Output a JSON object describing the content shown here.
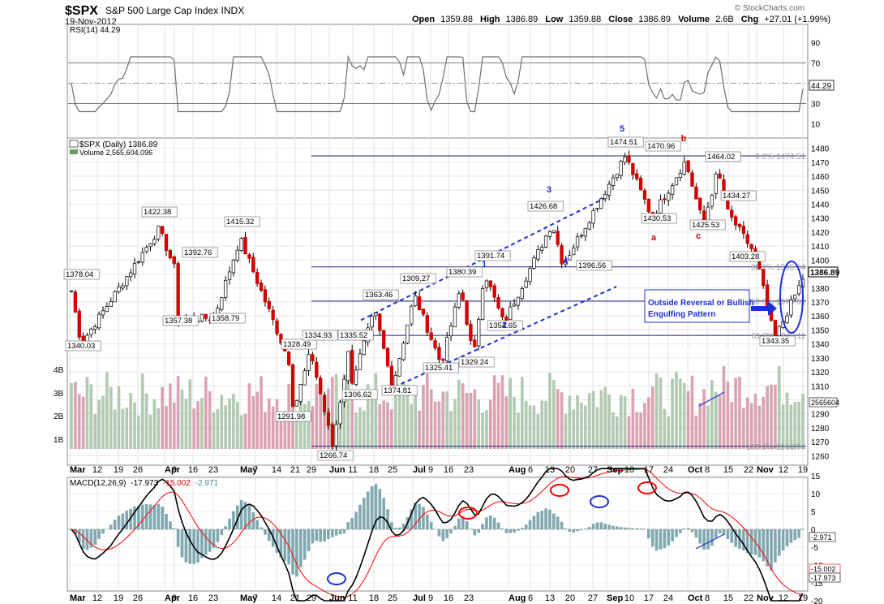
{
  "header": {
    "symbol": "$SPX",
    "name": "S&P 500 Large Cap Index INDX",
    "date": "19-Nov-2012",
    "watermark": "© StockCharts.com",
    "open_label": "Open",
    "open": "1359.88",
    "high_label": "High",
    "high": "1386.89",
    "low_label": "Low",
    "low": "1359.88",
    "close_label": "Close",
    "close": "1386.89",
    "volume_label": "Volume",
    "volume": "2.6B",
    "chg_label": "Chg",
    "chg": "+27.01 (+1.99%)"
  },
  "rsi": {
    "legend": "RSI(14) 44.29",
    "value": 44.29,
    "value_text": "44.29",
    "ticks": [
      "90",
      "70",
      "50",
      "30",
      "10"
    ],
    "levels": [
      90,
      70,
      50,
      30,
      10
    ]
  },
  "price": {
    "legend": "$SPX (Daily) 1386.89",
    "volume_legend": "Volume 2,565,604,096",
    "last_text": "1386.89",
    "volume_last_text": "2565604",
    "ticks": [
      1480,
      1470,
      1460,
      1450,
      1440,
      1430,
      1420,
      1410,
      1400,
      1390,
      1380,
      1370,
      1360,
      1350,
      1340,
      1330,
      1320,
      1310,
      1300,
      1290,
      1280,
      1270,
      1260
    ],
    "volume_ticks": [
      "4B",
      "3B",
      "2B",
      "1B"
    ],
    "fib_labels": [
      "0.0% 1474.51",
      "38.2% 1395.14",
      "50.0% 1370.62",
      "61.8% 1346.11",
      "100.0% 1266.74"
    ],
    "fib_levels": [
      1474.51,
      1395.14,
      1370.62,
      1346.11,
      1266.74
    ],
    "callouts": [
      "1378.04",
      "1340.03",
      "1422.38",
      "1392.76",
      "1357.38",
      "1358.79",
      "1415.32",
      "1328.49",
      "1291.98",
      "1334.93",
      "1266.74",
      "1335.52",
      "1306.62",
      "1363.46",
      "1374.81",
      "1309.27",
      "1325.41",
      "1380.39",
      "1329.24",
      "1391.74",
      "1354.65",
      "1426.68",
      "1396.56",
      "1474.51",
      "1430.53",
      "1470.96",
      "1425.53",
      "1464.02",
      "1434.27",
      "1403.28",
      "1343.35"
    ],
    "wave_labels": [
      "5",
      "3",
      "4",
      "1",
      "2",
      "b",
      "a",
      "c"
    ],
    "annotation": "Outside Reversal or Bullish Engulfing Pattern"
  },
  "macd": {
    "legend_name": "MACD(12,26,9)",
    "legend_macd": "-17.973",
    "legend_signal": "-15.002",
    "legend_hist": "-2.971",
    "ticks": [
      "15",
      "10",
      "5",
      "0",
      "-5",
      "-10",
      "-15",
      "-20"
    ],
    "levels": [
      15,
      10,
      5,
      0,
      -5,
      -10,
      -15,
      -20
    ],
    "last_macd": "-17.973",
    "last_signal": "-15.002",
    "last_hist": "-2.971"
  },
  "x_axis": [
    "Mar",
    "12",
    "19",
    "26",
    "Apr",
    "9",
    "16",
    "23",
    "May",
    "7",
    "14",
    "21",
    "29",
    "Jun",
    "11",
    "18",
    "25",
    "Jul",
    "9",
    "16",
    "23",
    "Aug",
    "6",
    "13",
    "20",
    "27",
    "Sep",
    "10",
    "17",
    "24",
    "Oct",
    "8",
    "15",
    "22",
    "Nov",
    "12",
    "19"
  ],
  "colors": {
    "up": "#ffffff",
    "down": "#d40000",
    "vol_up": "#a8c4a8",
    "vol_down": "#d799a8",
    "rsi_line": "#6e6e6e",
    "fib": "#1a237e",
    "macd": "#000000",
    "signal": "#ff0000",
    "hist": "#7fa8b0",
    "channel": "#1f2fd6",
    "circle_red": "#ff0000",
    "circle_blue": "#1f2fd6"
  },
  "chart_data": {
    "type": "candlestick",
    "title": "$SPX S&P 500 Large Cap Index INDX",
    "x_labels": [
      "Mar",
      "12",
      "19",
      "26",
      "Apr",
      "9",
      "16",
      "23",
      "May",
      "7",
      "14",
      "21",
      "29",
      "Jun",
      "11",
      "18",
      "25",
      "Jul",
      "9",
      "16",
      "23",
      "Aug",
      "6",
      "13",
      "20",
      "27",
      "Sep",
      "10",
      "17",
      "24",
      "Oct",
      "8",
      "15",
      "22",
      "Nov",
      "12",
      "19"
    ],
    "ylim": [
      1255,
      1485
    ],
    "anchors": [
      {
        "t": "Mar",
        "v": 1378.04
      },
      {
        "t": "Mar",
        "v": 1340.03
      },
      {
        "t": "Apr",
        "v": 1422.38
      },
      {
        "t": "Apr 9",
        "v": 1392.76
      },
      {
        "t": "Apr 16",
        "v": 1357.38
      },
      {
        "t": "Apr 23",
        "v": 1358.79
      },
      {
        "t": "May",
        "v": 1415.32
      },
      {
        "t": "May 21",
        "v": 1328.49
      },
      {
        "t": "May 21",
        "v": 1291.98
      },
      {
        "t": "May 29",
        "v": 1334.93
      },
      {
        "t": "Jun",
        "v": 1266.74
      },
      {
        "t": "Jun 11",
        "v": 1335.52
      },
      {
        "t": "Jun 11",
        "v": 1306.62
      },
      {
        "t": "Jun 18",
        "v": 1363.46
      },
      {
        "t": "Jun 25",
        "v": 1309.27
      },
      {
        "t": "Jul",
        "v": 1374.81
      },
      {
        "t": "Jul 16",
        "v": 1325.41
      },
      {
        "t": "Jul 16",
        "v": 1380.39
      },
      {
        "t": "Jul 23",
        "v": 1329.24
      },
      {
        "t": "Jul 23",
        "v": 1391.74
      },
      {
        "t": "Aug",
        "v": 1354.65
      },
      {
        "t": "Aug 13",
        "v": 1426.68
      },
      {
        "t": "Aug 27",
        "v": 1396.56
      },
      {
        "t": "Sep 10",
        "v": 1474.51
      },
      {
        "t": "Sep 17",
        "v": 1430.53
      },
      {
        "t": "Sep 24",
        "v": 1470.96
      },
      {
        "t": "Oct 8",
        "v": 1425.53
      },
      {
        "t": "Oct 15",
        "v": 1464.02
      },
      {
        "t": "Oct 22",
        "v": 1434.27
      },
      {
        "t": "Nov",
        "v": 1403.28
      },
      {
        "t": "Nov 12",
        "v": 1343.35
      },
      {
        "t": "Nov 19",
        "v": 1386.89
      }
    ],
    "rsi_last": 44.29,
    "macd_last": -17.973,
    "signal_last": -15.002,
    "hist_last": -2.971
  }
}
